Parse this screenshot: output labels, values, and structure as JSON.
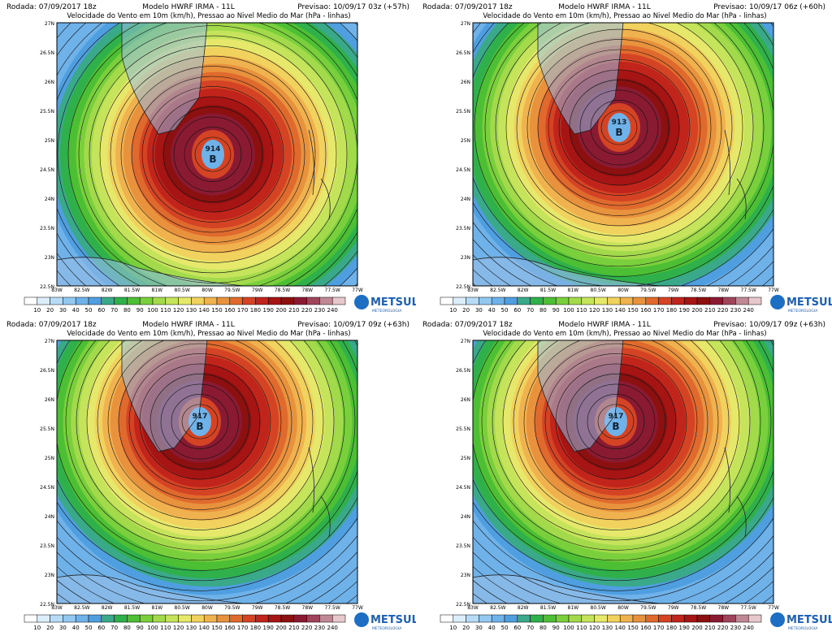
{
  "panels": [
    {
      "header": {
        "run": "Rodada: 07/09/2017 18z",
        "model": "Modelo HWRF IRMA - 11L",
        "subtitle": "Velocidade do Vento em 10m (km/h), Pressao ao Nivel Medio do Mar (hPa - linhas)",
        "forecast": "Previsao: 10/09/17 03z (+57h)"
      },
      "center": {
        "pressure": "914",
        "marker": "B"
      }
    },
    {
      "header": {
        "run": "Rodada: 07/09/2017 18z",
        "model": "Modelo HWRF IRMA - 11L",
        "subtitle": "Velocidade do Vento em 10m (km/h), Pressao ao Nivel Medio do Mar (hPa - linhas)",
        "forecast": "Previsao: 10/09/17 06z (+60h)"
      },
      "center": {
        "pressure": "913",
        "marker": "B"
      }
    },
    {
      "header": {
        "run": "Rodada: 07/09/2017 18z",
        "model": "Modelo HWRF IRMA - 11L",
        "subtitle": "Velocidade do Vento em 10m (km/h), Pressao ao Nivel Medio do Mar (hPa - linhas)",
        "forecast": "Previsao: 10/09/17 09z (+63h)"
      },
      "center": {
        "pressure": "917",
        "marker": "B"
      }
    },
    {
      "header": {
        "run": "Rodada: 07/09/2017 18z",
        "model": "Modelo HWRF IRMA - 11L",
        "subtitle": "Velocidade do Vento em 10m (km/h), Pressao ao Nivel Medio do Mar (hPa - linhas)",
        "forecast": "Previsao: 10/09/17 09z (+63h)"
      },
      "center": {
        "pressure": "917",
        "marker": "B"
      }
    }
  ],
  "lat_labels": [
    "27N",
    "26.5N",
    "26N",
    "25.5N",
    "25N",
    "24.5N",
    "24N",
    "23.5N",
    "23N",
    "22.5N"
  ],
  "lon_labels": [
    "83W",
    "82.5W",
    "82W",
    "81.5W",
    "81W",
    "80.5W",
    "80W",
    "79.5W",
    "79W",
    "78.5W",
    "78W",
    "77.5W",
    "77W"
  ],
  "colorbar": {
    "labels": [
      "10",
      "20",
      "30",
      "40",
      "50",
      "60",
      "70",
      "80",
      "90",
      "100",
      "110",
      "120",
      "130",
      "140",
      "150",
      "160",
      "170",
      "180",
      "190",
      "200",
      "210",
      "220",
      "230",
      "240"
    ],
    "colors": [
      "#ffffff",
      "#dceefb",
      "#b8dcf6",
      "#93c8f0",
      "#6fb2ea",
      "#4f9fe0",
      "#3aa98a",
      "#2fb04a",
      "#4cbf34",
      "#79cf3c",
      "#a3da4c",
      "#c6e35c",
      "#e6e86c",
      "#f2d25e",
      "#f0b24e",
      "#e8923e",
      "#e06a2e",
      "#d44424",
      "#c0241a",
      "#a61414",
      "#8c1010",
      "#8a1a32",
      "#a0445c",
      "#c08894",
      "#e6c8cc"
    ]
  },
  "logo": {
    "name": "METSUL",
    "tagline": "METEOROLOGIA"
  }
}
